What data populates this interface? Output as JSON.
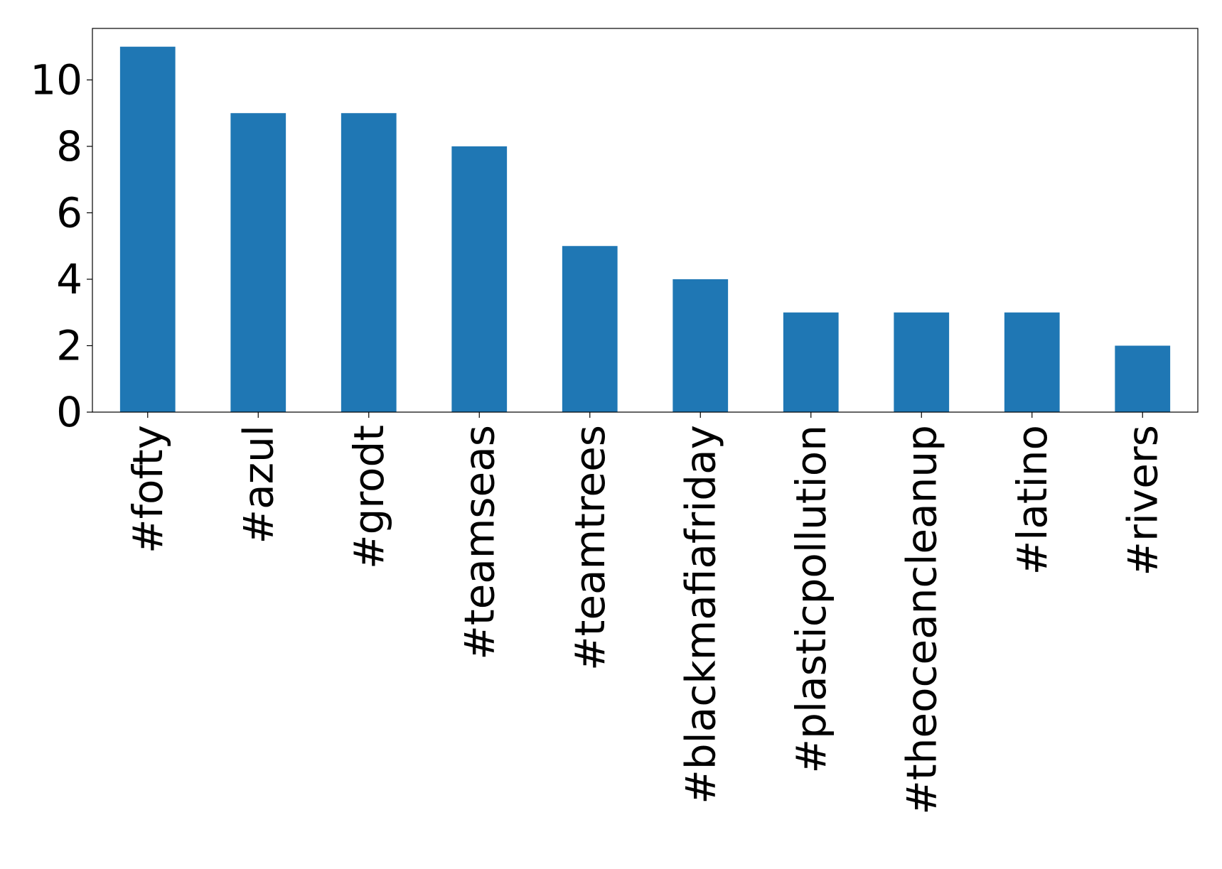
{
  "chart_data": {
    "type": "bar",
    "categories": [
      "#fofty",
      "#azul",
      "#grodt",
      "#teamseas",
      "#teamtrees",
      "#blackmafiafriday",
      "#plasticpollution",
      "#theoceancleanup",
      "#latino",
      "#rivers"
    ],
    "values": [
      11,
      9,
      9,
      8,
      5,
      4,
      3,
      3,
      3,
      2
    ],
    "title": "",
    "xlabel": "",
    "ylabel": "",
    "ylim": [
      0,
      11.55
    ],
    "yticks": [
      0,
      2,
      4,
      6,
      8,
      10
    ],
    "grid": false,
    "legend": "none",
    "colors": {
      "bar": "#1f77b4",
      "axis": "#000000",
      "background": "#ffffff"
    }
  }
}
